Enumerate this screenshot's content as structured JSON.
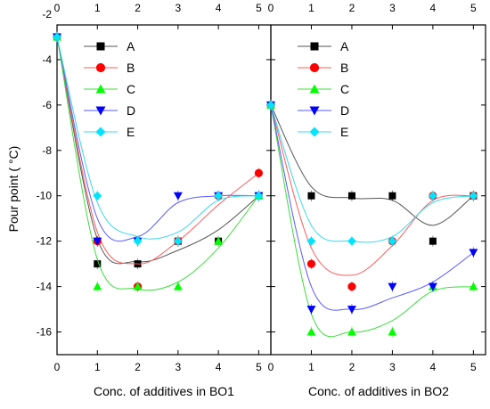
{
  "colors": {
    "A": "#000000",
    "B": "#ff0000",
    "C": "#00ff00",
    "D": "#0000ff",
    "E": "#00e5ff",
    "fit_A": "#555555",
    "fit_B": "#ff5a5a",
    "fit_C": "#3ddc3d",
    "fit_D": "#5a5aff",
    "fit_E": "#39d7ef"
  },
  "legend_marker_icons": {
    "A": "square-icon",
    "B": "circle-icon",
    "C": "triangle-up-icon",
    "D": "triangle-down-icon",
    "E": "diamond-icon"
  },
  "chart_data": [
    {
      "type": "scatter",
      "panel": "left",
      "title": "",
      "xlabel": "Conc. of additives in BO1",
      "ylabel": "Pour point ( °C)",
      "xlim": [
        0,
        5.3
      ],
      "ylim": [
        -17,
        -2
      ],
      "xticks": [
        "0",
        "1",
        "2",
        "3",
        "4",
        "5"
      ],
      "yticks": [
        "-16",
        "-14",
        "-12",
        "-10",
        "-8",
        "-6",
        "-4",
        "-2"
      ],
      "x": [
        0,
        1,
        2,
        3,
        4,
        5
      ],
      "legend_position": "top-left",
      "series": [
        {
          "name": "A",
          "marker": "square",
          "values": [
            -3,
            -13,
            -13,
            -12,
            -12,
            -10
          ],
          "fit": [
            -3,
            -11.9,
            -12.9,
            -12.4,
            -11.5,
            -10
          ]
        },
        {
          "name": "B",
          "marker": "circle",
          "values": [
            -3,
            -12,
            -14,
            -12,
            -10,
            -9
          ],
          "fit": [
            -3,
            -11.6,
            -13,
            -12,
            -10.4,
            -9
          ]
        },
        {
          "name": "C",
          "marker": "triangle-up",
          "values": [
            -3,
            -14,
            -14,
            -14,
            -12,
            -10
          ],
          "fit": [
            -3,
            -12.8,
            -14.1,
            -13.8,
            -12.3,
            -10
          ]
        },
        {
          "name": "D",
          "marker": "triangle-down",
          "values": [
            -3,
            -12,
            -12,
            -10,
            -10,
            -10
          ],
          "fit": [
            -3,
            -11,
            -11.8,
            -10.3,
            -10,
            -10
          ]
        },
        {
          "name": "E",
          "marker": "diamond",
          "values": [
            -3,
            -10,
            -12,
            -12,
            -10,
            -10
          ],
          "fit": [
            -3,
            -10.3,
            -11.8,
            -11.6,
            -10.2,
            -10
          ]
        }
      ]
    },
    {
      "type": "scatter",
      "panel": "right",
      "title": "",
      "xlabel": "Conc. of additives in BO2",
      "ylabel": "",
      "xlim": [
        0,
        5.3
      ],
      "ylim": [
        -17,
        -2
      ],
      "xticks": [
        "0",
        "1",
        "2",
        "3",
        "4",
        "5"
      ],
      "yticks": [],
      "x": [
        0,
        1,
        2,
        3,
        4,
        5
      ],
      "legend_position": "top-left",
      "series": [
        {
          "name": "A",
          "marker": "square",
          "values": [
            -6,
            -10,
            -10,
            -10,
            -12,
            -10
          ],
          "fit": [
            -6,
            -9.6,
            -10.1,
            -10.2,
            -11.3,
            -10
          ]
        },
        {
          "name": "B",
          "marker": "circle",
          "values": [
            -6,
            -13,
            -14,
            -12,
            -10,
            -10
          ],
          "fit": [
            -6,
            -12.3,
            -13.5,
            -12.2,
            -10.2,
            -10
          ]
        },
        {
          "name": "C",
          "marker": "triangle-up",
          "values": [
            -6,
            -16,
            -16,
            -16,
            -14,
            -14
          ],
          "fit": [
            -6,
            -15.2,
            -16,
            -15.5,
            -14.2,
            -14
          ]
        },
        {
          "name": "D",
          "marker": "triangle-down",
          "values": [
            -6,
            -15,
            -15,
            -14,
            -14,
            -12.5
          ],
          "fit": [
            -6,
            -14,
            -15,
            -14.5,
            -13.8,
            -12.5
          ]
        },
        {
          "name": "E",
          "marker": "diamond",
          "values": [
            -6,
            -12,
            -12,
            -12,
            -10,
            -10
          ],
          "fit": [
            -6,
            -11.3,
            -12,
            -11.8,
            -10.3,
            -10
          ]
        }
      ]
    }
  ]
}
